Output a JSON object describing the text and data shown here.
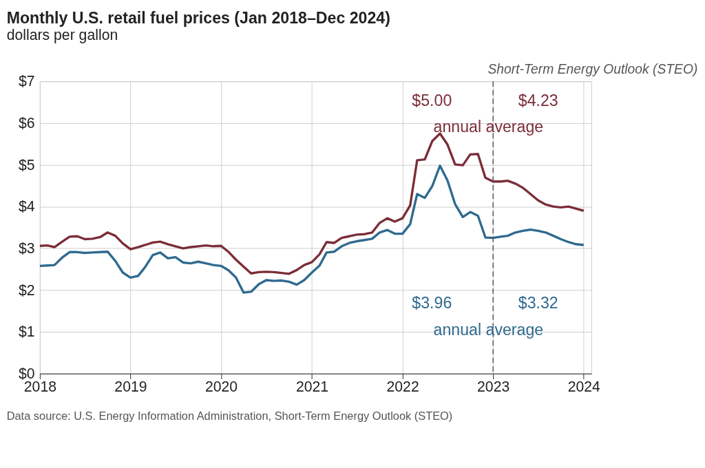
{
  "chart_data": {
    "type": "line",
    "title": "Monthly U.S. retail fuel prices (Jan 2018–Dec 2024)",
    "subtitle": "dollars per gallon",
    "x": [
      "2018-01",
      "2018-02",
      "2018-03",
      "2018-04",
      "2018-05",
      "2018-06",
      "2018-07",
      "2018-08",
      "2018-09",
      "2018-10",
      "2018-11",
      "2018-12",
      "2019-01",
      "2019-02",
      "2019-03",
      "2019-04",
      "2019-05",
      "2019-06",
      "2019-07",
      "2019-08",
      "2019-09",
      "2019-10",
      "2019-11",
      "2019-12",
      "2020-01",
      "2020-02",
      "2020-03",
      "2020-04",
      "2020-05",
      "2020-06",
      "2020-07",
      "2020-08",
      "2020-09",
      "2020-10",
      "2020-11",
      "2020-12",
      "2021-01",
      "2021-02",
      "2021-03",
      "2021-04",
      "2021-05",
      "2021-06",
      "2021-07",
      "2021-08",
      "2021-09",
      "2021-10",
      "2021-11",
      "2021-12",
      "2022-01",
      "2022-02",
      "2022-03",
      "2022-04",
      "2022-05",
      "2022-06",
      "2022-07",
      "2022-08",
      "2022-09",
      "2022-10",
      "2022-11",
      "2022-12",
      "2023-01",
      "2023-02",
      "2023-03",
      "2023-04",
      "2023-05",
      "2023-06",
      "2023-07",
      "2023-08",
      "2023-09",
      "2023-10",
      "2023-11",
      "2023-12",
      "2024-01"
    ],
    "series": [
      {
        "color": "#7b2d38",
        "values": [
          3.06,
          3.07,
          3.03,
          3.16,
          3.28,
          3.29,
          3.22,
          3.23,
          3.27,
          3.38,
          3.3,
          3.12,
          2.98,
          3.03,
          3.08,
          3.14,
          3.16,
          3.1,
          3.05,
          3.0,
          3.03,
          3.05,
          3.07,
          3.05,
          3.06,
          2.91,
          2.73,
          2.56,
          2.4,
          2.43,
          2.44,
          2.43,
          2.41,
          2.39,
          2.48,
          2.6,
          2.67,
          2.86,
          3.15,
          3.13,
          3.25,
          3.29,
          3.33,
          3.34,
          3.38,
          3.61,
          3.72,
          3.64,
          3.72,
          4.03,
          5.11,
          5.13,
          5.57,
          5.75,
          5.49,
          5.01,
          4.99,
          5.25,
          5.26,
          4.69,
          4.6,
          4.6,
          4.62,
          4.55,
          4.45,
          4.3,
          4.15,
          4.05,
          4.0,
          3.98,
          4.0,
          3.95,
          3.9
        ]
      },
      {
        "color": "#2f6a8f",
        "values": [
          2.58,
          2.59,
          2.6,
          2.78,
          2.91,
          2.91,
          2.89,
          2.9,
          2.91,
          2.92,
          2.7,
          2.42,
          2.3,
          2.34,
          2.55,
          2.84,
          2.9,
          2.76,
          2.79,
          2.66,
          2.64,
          2.68,
          2.64,
          2.6,
          2.58,
          2.47,
          2.3,
          1.94,
          1.96,
          2.14,
          2.24,
          2.22,
          2.23,
          2.2,
          2.13,
          2.24,
          2.42,
          2.59,
          2.9,
          2.92,
          3.05,
          3.13,
          3.17,
          3.2,
          3.23,
          3.38,
          3.44,
          3.35,
          3.35,
          3.58,
          4.3,
          4.21,
          4.49,
          4.98,
          4.63,
          4.06,
          3.75,
          3.87,
          3.78,
          3.26,
          3.25,
          3.28,
          3.3,
          3.38,
          3.42,
          3.45,
          3.42,
          3.38,
          3.3,
          3.22,
          3.15,
          3.1,
          3.08
        ]
      }
    ],
    "xlim": [
      "2018-01-01",
      "2024-02-01"
    ],
    "xticks": [
      "2018",
      "2019",
      "2020",
      "2021",
      "2022",
      "2023",
      "2024"
    ],
    "ylim": [
      0,
      7
    ],
    "yticks": [
      {
        "value": 0,
        "label": "$0"
      },
      {
        "value": 1,
        "label": "$1"
      },
      {
        "value": 2,
        "label": "$2"
      },
      {
        "value": 3,
        "label": "$3"
      },
      {
        "value": 4,
        "label": "$4"
      },
      {
        "value": 5,
        "label": "$5"
      },
      {
        "value": 6,
        "label": "$6"
      },
      {
        "value": 7,
        "label": "$7"
      }
    ],
    "ref_lines": [
      {
        "axis": "x",
        "value": "2023-01-01",
        "label": "Short-Term Energy Outlook (STEO)",
        "color": "#555555",
        "line_style": "dashed"
      }
    ],
    "annotations": [
      "$5.00",
      "$4.23",
      "annual average",
      "$3.96",
      "$3.32",
      "annual average",
      "Data source: U.S. Energy Information Administration, Short-Term Energy Outlook (STEO)"
    ],
    "grid": true,
    "marker": "none",
    "line_style": "solid"
  }
}
